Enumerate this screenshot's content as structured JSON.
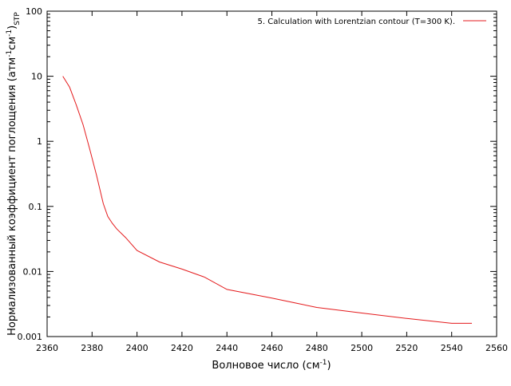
{
  "chart_data": {
    "type": "line",
    "title": "",
    "xlabel": "Волновое число (см",
    "xlabel_sup": "-1",
    "xlabel_close": ")",
    "ylabel_main": "Нормализованный коэффициент поглощения (атм",
    "ylabel_sup1": "-1",
    "ylabel_mid": "см",
    "ylabel_sup2": "-1",
    "ylabel_close": ")",
    "ylabel_sub": "STP",
    "xlim": [
      2360,
      2560
    ],
    "ylim": [
      0.001,
      100
    ],
    "y_scale": "log",
    "grid": false,
    "legend_position": "top-right",
    "x_ticks": [
      "2360",
      "2380",
      "2400",
      "2420",
      "2440",
      "2460",
      "2480",
      "2500",
      "2520",
      "2540",
      "2560"
    ],
    "y_ticks": [
      "0.001",
      "0.01",
      "0.1",
      "1",
      "10",
      "100"
    ],
    "series": [
      {
        "name": "5. Calculation with Lorentzian contour (T=300 K).",
        "color": "#e41a1c",
        "x": [
          2367,
          2370,
          2373,
          2376,
          2379,
          2382,
          2385,
          2387,
          2389,
          2391,
          2395,
          2400,
          2410,
          2420,
          2430,
          2440,
          2460,
          2480,
          2500,
          2520,
          2540,
          2549
        ],
        "y": [
          10,
          6.8,
          3.6,
          1.8,
          0.75,
          0.3,
          0.11,
          0.07,
          0.055,
          0.045,
          0.033,
          0.021,
          0.014,
          0.0109,
          0.0082,
          0.0053,
          0.0039,
          0.0028,
          0.0023,
          0.0019,
          0.0016,
          0.0016
        ]
      }
    ]
  }
}
